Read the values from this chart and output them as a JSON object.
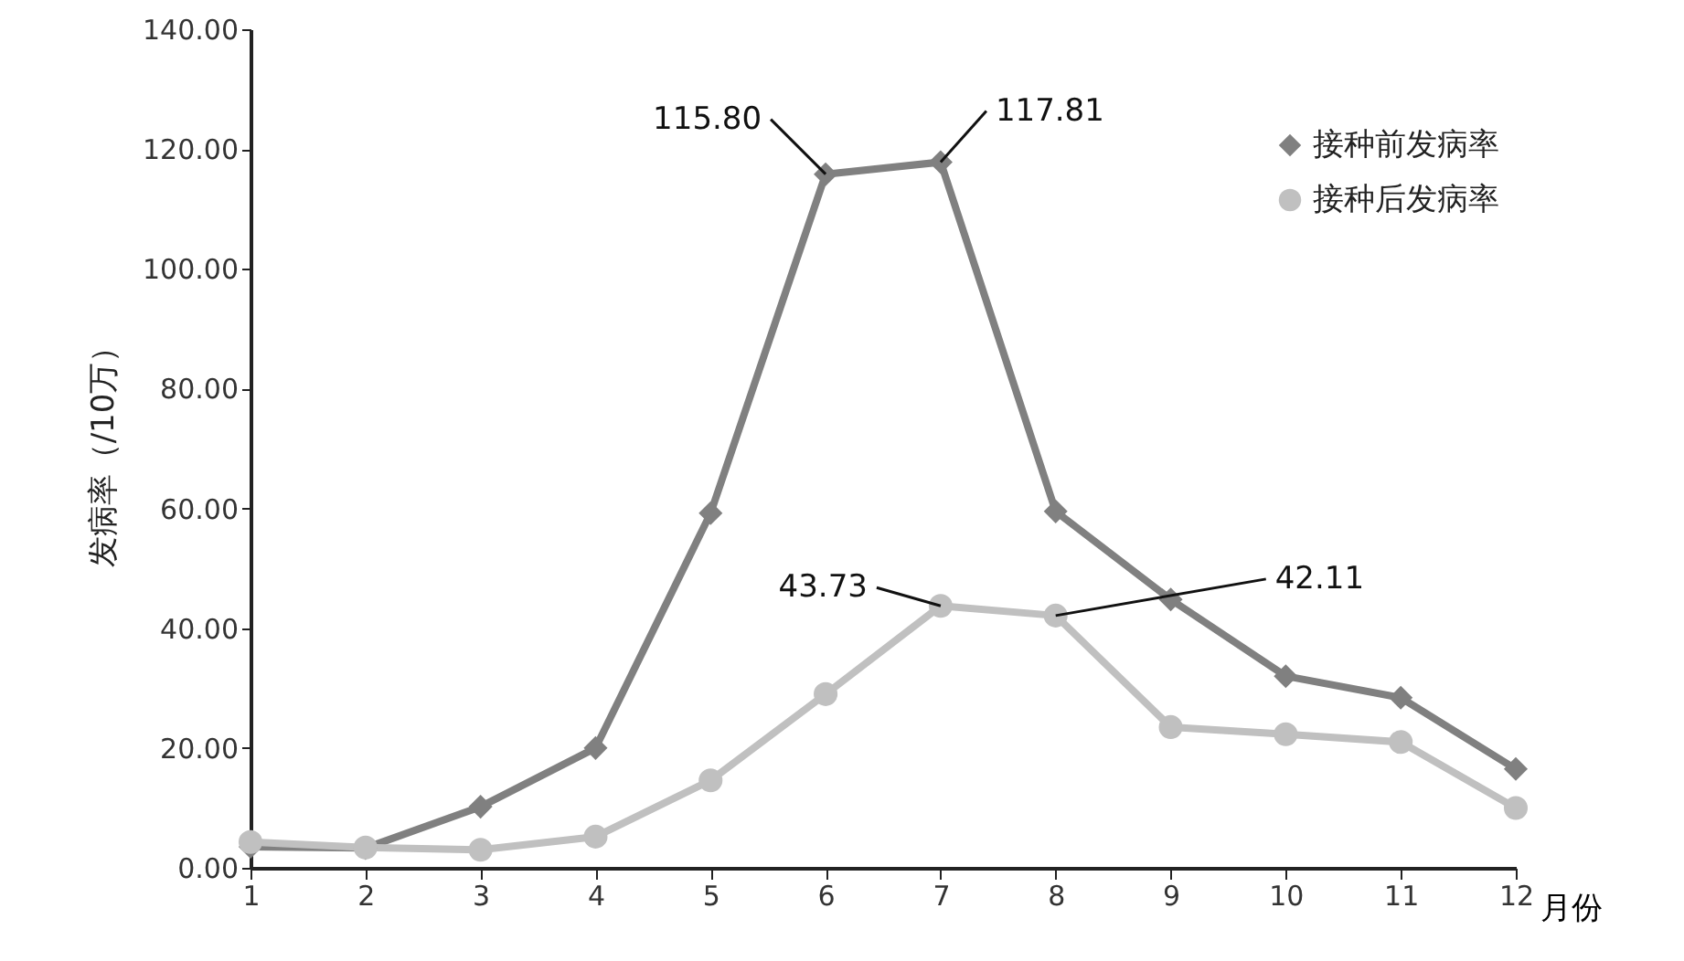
{
  "chart_data": {
    "type": "line",
    "xlabel": "月份",
    "ylabel": "发病率（/10万）",
    "x": [
      1,
      2,
      3,
      4,
      5,
      6,
      7,
      8,
      9,
      10,
      11,
      12
    ],
    "series": [
      {
        "name": "接种前发病率",
        "color": "#808080",
        "marker": "diamond",
        "values": [
          3.5,
          3.3,
          10.2,
          20.0,
          59.2,
          115.8,
          117.81,
          59.5,
          44.8,
          32.0,
          28.4,
          16.5
        ]
      },
      {
        "name": "接种后发病率",
        "color": "#c0c0c0",
        "marker": "circle",
        "values": [
          4.3,
          3.4,
          3.0,
          5.2,
          14.6,
          29.0,
          43.73,
          42.11,
          23.5,
          22.3,
          21.0,
          10.0
        ]
      }
    ],
    "annotations": [
      {
        "text": "115.80",
        "x": 6,
        "y": 115.8
      },
      {
        "text": "117.81",
        "x": 7,
        "y": 117.81
      },
      {
        "text": "43.73",
        "x": 7,
        "y": 43.73
      },
      {
        "text": "42.11",
        "x": 8,
        "y": 42.11
      }
    ],
    "xlim": [
      1,
      12
    ],
    "xticks": [
      1,
      2,
      3,
      4,
      5,
      6,
      7,
      8,
      9,
      10,
      11,
      12
    ],
    "ylim": [
      0,
      140
    ],
    "yticks": [
      {
        "value": 0,
        "label": "0.00"
      },
      {
        "value": 20,
        "label": "20.00"
      },
      {
        "value": 40,
        "label": "40.00"
      },
      {
        "value": 60,
        "label": "60.00"
      },
      {
        "value": 80,
        "label": "80.00"
      },
      {
        "value": 100,
        "label": "100.00"
      },
      {
        "value": 120,
        "label": "120.00"
      },
      {
        "value": 140,
        "label": "140.00"
      }
    ],
    "grid": false,
    "legend": "top right",
    "line_style": "solid"
  }
}
